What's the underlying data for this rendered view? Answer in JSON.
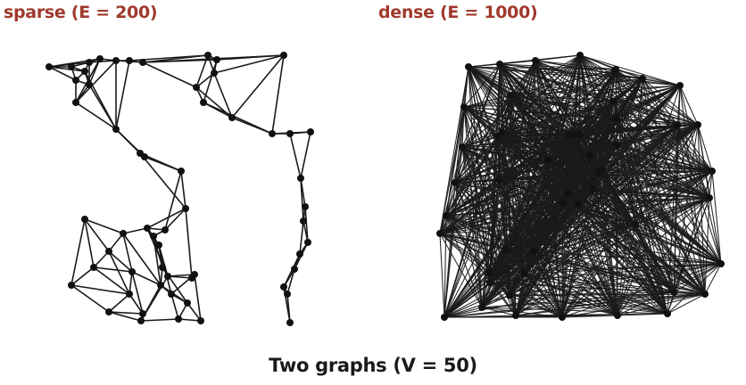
{
  "titles": {
    "sparse": "sparse  (E = 200)",
    "dense": "dense  (E = 1000)",
    "caption": "Two graphs (V = 50)"
  },
  "colors": {
    "label": "#a0392c",
    "edge": "#1a1a1a",
    "vertex": "#111111"
  }
}
